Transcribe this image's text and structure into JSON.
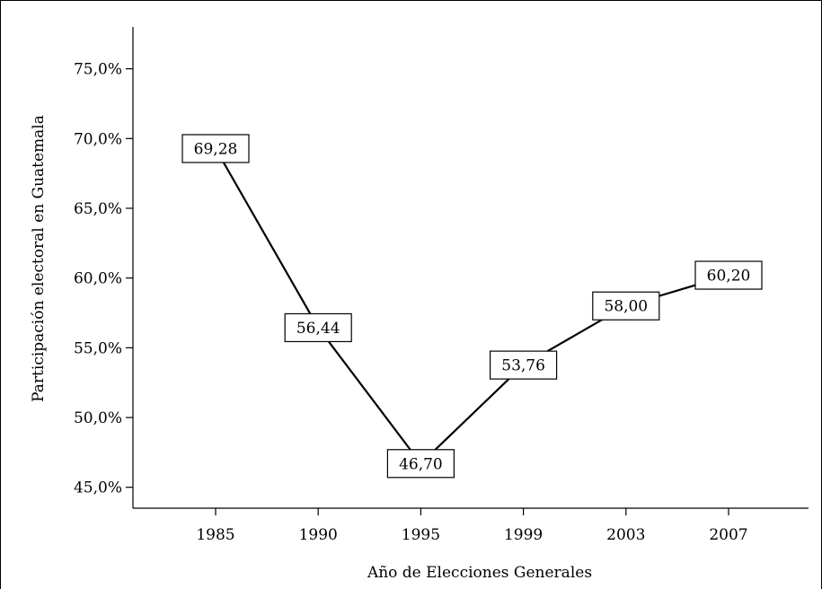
{
  "chart_data": {
    "type": "line",
    "title": "",
    "xlabel": "Año de Elecciones Generales",
    "ylabel": "Participación electoral en Guatemala",
    "categories": [
      "1985",
      "1990",
      "1995",
      "1999",
      "2003",
      "2007"
    ],
    "values": [
      69.28,
      56.44,
      46.7,
      53.76,
      58.0,
      60.2
    ],
    "data_labels": [
      "69,28",
      "56,44",
      "46,70",
      "53,76",
      "58,00",
      "60,20"
    ],
    "ylim": [
      43.5,
      78.0
    ],
    "yticks": [
      45,
      50,
      55,
      60,
      65,
      70,
      75
    ],
    "ytick_labels": [
      "45,0%",
      "50,0%",
      "55,0%",
      "60,0%",
      "65,0%",
      "70,0%",
      "75,0%"
    ],
    "grid": false,
    "legend": "none",
    "colors": {
      "line": "#000000",
      "axis": "#000000",
      "label_box_fill": "#ffffff",
      "label_box_stroke": "#000000"
    }
  }
}
